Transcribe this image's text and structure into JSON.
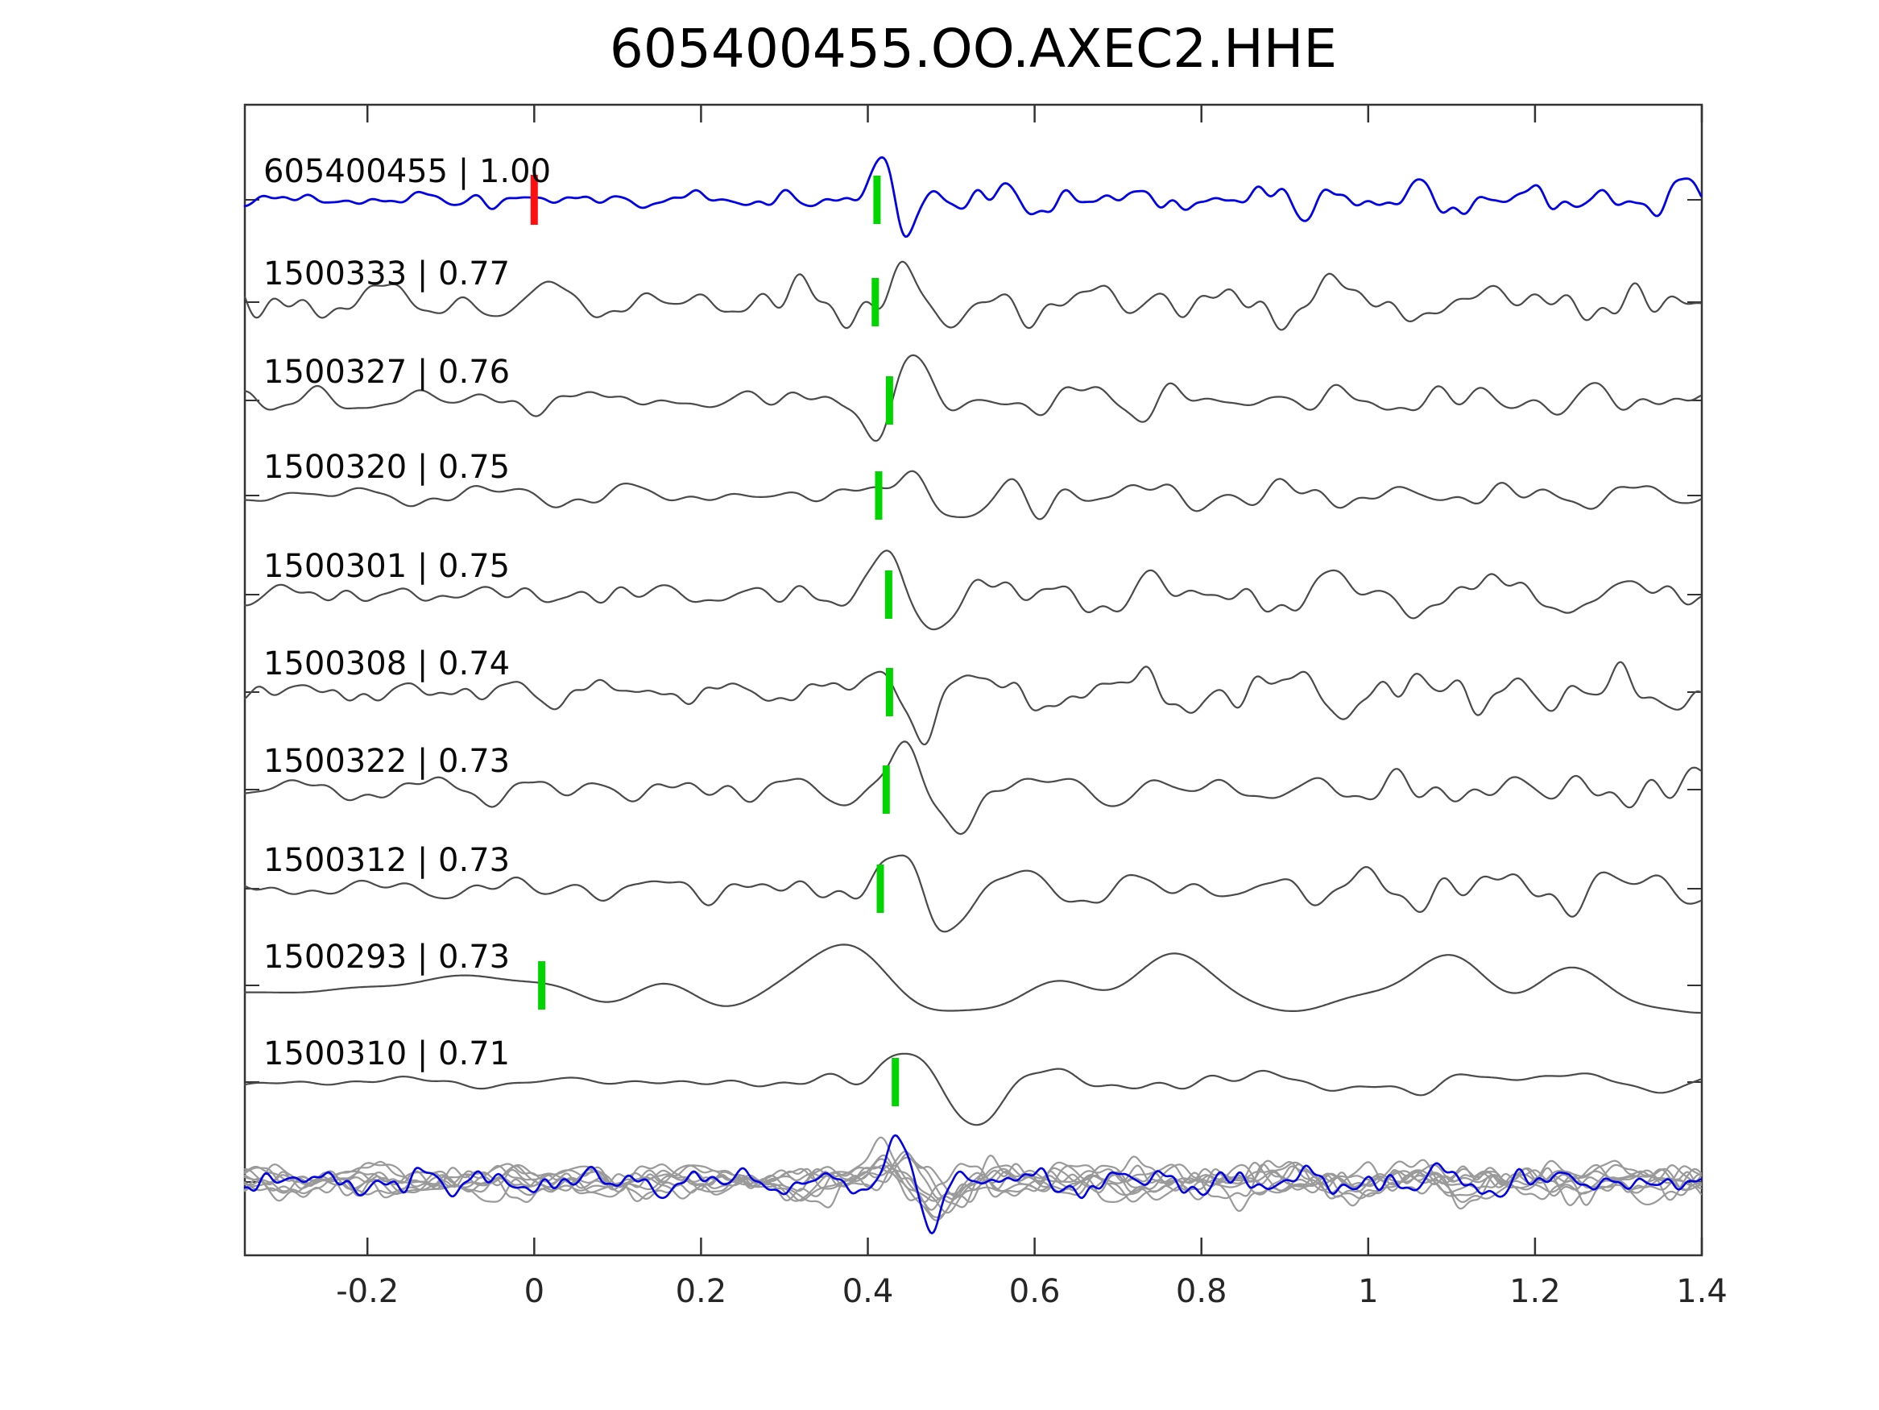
{
  "title": "605400455.OO.AXEC2.HHE",
  "colors": {
    "background": "#ffffff",
    "template_blue": "#0202e8",
    "detection_gray": "#4a4a4a",
    "overlay_gray": "#9a9a9a",
    "pick_green": "#00d500",
    "template_red": "#ff0f0f",
    "axis": "#333333",
    "text": "#0a0a0a",
    "tick_text": "#262626"
  },
  "chart_data": {
    "type": "line",
    "title": "605400455.OO.AXEC2.HHE",
    "xlabel": "",
    "ylabel": "",
    "xlim": [
      -0.347,
      1.4
    ],
    "grid": false,
    "legend": "none",
    "xticks": {
      "values": [
        -0.2,
        0,
        0.2,
        0.4,
        0.6,
        0.8,
        1,
        1.2,
        1.4
      ],
      "labels": [
        "-0.2",
        "0",
        "0.2",
        "0.4",
        "0.6",
        "0.8",
        "1",
        "1.2",
        "1.4"
      ]
    },
    "traces": [
      {
        "id": "605400455",
        "correlation": 1.0,
        "label": "605400455 | 1.00",
        "role": "template",
        "color_key": "template_blue",
        "template_marker_x": 0.0,
        "pick_marker_x": 0.411,
        "style": {
          "seed": 7,
          "amp0": 11,
          "amp1": 21,
          "trans": 0.36,
          "fmin": 7,
          "fmax": 38,
          "width": 2.8,
          "arrivals": [
            {
              "t": 0.425,
              "A": 62,
              "sig": 0.021,
              "f": 13,
              "ps": 2.4
            },
            {
              "t": 0.55,
              "A": 14,
              "sig": 0.08,
              "f": 10,
              "ps": 1.0
            }
          ]
        }
      },
      {
        "id": "1500333",
        "correlation": 0.77,
        "label": "1500333 | 0.77",
        "role": "detection",
        "color_key": "detection_gray",
        "pick_marker_x": 0.409,
        "style": {
          "seed": 23,
          "amp0": 25,
          "amp1": 31,
          "trans": 0.42,
          "fmin": 5,
          "fmax": 30,
          "width": 2.2,
          "arrivals": [
            {
              "t": 0.47,
              "A": 46,
              "sig": 0.05,
              "f": 6.5,
              "ps": 3.34
            }
          ]
        }
      },
      {
        "id": "1500327",
        "correlation": 0.76,
        "label": "1500327 | 0.76",
        "role": "detection",
        "color_key": "detection_gray",
        "pick_marker_x": 0.426,
        "style": {
          "seed": 37,
          "amp0": 17,
          "amp1": 23,
          "trans": 0.4,
          "fmin": 5,
          "fmax": 26,
          "width": 2.2,
          "arrivals": [
            {
              "t": 0.435,
              "A": 50,
              "sig": 0.032,
              "f": 9,
              "ps": 0.3
            }
          ]
        }
      },
      {
        "id": "1500320",
        "correlation": 0.75,
        "label": "1500320 | 0.75",
        "role": "detection",
        "color_key": "detection_gray",
        "pick_marker_x": 0.413,
        "style": {
          "seed": 41,
          "amp0": 13,
          "amp1": 27,
          "trans": 0.42,
          "fmin": 4.5,
          "fmax": 24,
          "width": 2.2,
          "arrivals": [
            {
              "t": 0.485,
              "A": 46,
              "sig": 0.055,
              "f": 5.5,
              "ps": 3.3
            }
          ]
        }
      },
      {
        "id": "1500301",
        "correlation": 0.75,
        "label": "1500301 | 0.75",
        "role": "detection",
        "color_key": "detection_gray",
        "pick_marker_x": 0.425,
        "style": {
          "seed": 59,
          "amp0": 16,
          "amp1": 26,
          "trans": 0.4,
          "fmin": 5,
          "fmax": 28,
          "width": 2.2,
          "arrivals": [
            {
              "t": 0.44,
              "A": 54,
              "sig": 0.038,
              "f": 8,
              "ps": 2.7
            }
          ]
        }
      },
      {
        "id": "1500308",
        "correlation": 0.74,
        "label": "1500308 | 0.74",
        "role": "detection",
        "color_key": "detection_gray",
        "pick_marker_x": 0.426,
        "style": {
          "seed": 61,
          "amp0": 21,
          "amp1": 30,
          "trans": 0.42,
          "fmin": 5,
          "fmax": 28,
          "width": 2.2,
          "arrivals": [
            {
              "t": 0.45,
              "A": 46,
              "sig": 0.045,
              "f": 7.5,
              "ps": 3.8
            }
          ]
        }
      },
      {
        "id": "1500322",
        "correlation": 0.73,
        "label": "1500322 | 0.73",
        "role": "detection",
        "color_key": "detection_gray",
        "pick_marker_x": 0.422,
        "style": {
          "seed": 73,
          "amp0": 15,
          "amp1": 27,
          "trans": 0.42,
          "fmin": 5,
          "fmax": 26,
          "width": 2.2,
          "arrivals": [
            {
              "t": 0.47,
              "A": 46,
              "sig": 0.05,
              "f": 6.5,
              "ps": 3.3
            }
          ]
        }
      },
      {
        "id": "1500312",
        "correlation": 0.73,
        "label": "1500312 | 0.73",
        "role": "detection",
        "color_key": "detection_gray",
        "pick_marker_x": 0.415,
        "style": {
          "seed": 83,
          "amp0": 16,
          "amp1": 25,
          "trans": 0.42,
          "fmin": 5,
          "fmax": 26,
          "width": 2.2,
          "arrivals": [
            {
              "t": 0.47,
              "A": 42,
              "sig": 0.05,
              "f": 6.5,
              "ps": 3.5
            }
          ]
        }
      },
      {
        "id": "1500293",
        "correlation": 0.73,
        "label": "1500293 | 0.73",
        "role": "detection",
        "color_key": "detection_gray",
        "pick_marker_x": 0.009,
        "style": {
          "seed": 97,
          "amp0": 13,
          "amp1": 41,
          "trans": 0.04,
          "fmin": 1.9,
          "fmax": 7.5,
          "width": 2.2,
          "arrivals": [
            {
              "t": 0.45,
              "A": 28,
              "sig": 0.09,
              "f": 3.8,
              "ps": 3.3
            }
          ]
        }
      },
      {
        "id": "1500310",
        "correlation": 0.71,
        "label": "1500310 | 0.71",
        "role": "detection",
        "color_key": "detection_gray",
        "pick_marker_x": 0.433,
        "style": {
          "seed": 103,
          "amp0": 6,
          "amp1": 13,
          "trans": 0.34,
          "fmin": 4,
          "fmax": 20,
          "width": 2.2,
          "arrivals": [
            {
              "t": 0.5,
              "A": 56,
              "sig": 0.065,
              "f": 4.8,
              "ps": 3.5
            },
            {
              "t": 1.15,
              "A": 12,
              "sig": 0.15,
              "f": 3,
              "ps": 0.5
            }
          ]
        }
      }
    ],
    "overlay_row": {
      "description_visible": false,
      "members": [
        {
          "color_key": "overlay_gray",
          "style": {
            "seed": 211,
            "amp0": 16,
            "amp1": 18,
            "trans": 0.4,
            "fmin": 6,
            "fmax": 42,
            "width": 2.2,
            "off": -6,
            "arrivals": [
              {
                "t": 0.46,
                "A": 34,
                "sig": 0.05,
                "f": 8,
                "ps": 3.0
              }
            ]
          }
        },
        {
          "color_key": "overlay_gray",
          "style": {
            "seed": 223,
            "amp0": 18,
            "amp1": 20,
            "trans": 0.4,
            "fmin": 6,
            "fmax": 40,
            "width": 2.2,
            "off": 4,
            "arrivals": [
              {
                "t": 0.45,
                "A": 40,
                "sig": 0.055,
                "f": 7,
                "ps": 3.3
              }
            ]
          }
        },
        {
          "color_key": "overlay_gray",
          "style": {
            "seed": 227,
            "amp0": 14,
            "amp1": 17,
            "trans": 0.4,
            "fmin": 6,
            "fmax": 44,
            "width": 2.2,
            "off": -2,
            "arrivals": [
              {
                "t": 0.47,
                "A": 30,
                "sig": 0.05,
                "f": 8,
                "ps": 2.8
              }
            ]
          }
        },
        {
          "color_key": "overlay_gray",
          "style": {
            "seed": 229,
            "amp0": 17,
            "amp1": 19,
            "trans": 0.4,
            "fmin": 5,
            "fmax": 38,
            "width": 2.2,
            "off": 7,
            "arrivals": [
              {
                "t": 0.46,
                "A": 38,
                "sig": 0.06,
                "f": 6.5,
                "ps": 3.6
              }
            ]
          }
        },
        {
          "color_key": "overlay_gray",
          "style": {
            "seed": 233,
            "amp0": 15,
            "amp1": 18,
            "trans": 0.4,
            "fmin": 6,
            "fmax": 42,
            "width": 2.2,
            "off": -8,
            "arrivals": [
              {
                "t": 0.44,
                "A": 32,
                "sig": 0.045,
                "f": 9,
                "ps": 3.1
              }
            ]
          }
        },
        {
          "color_key": "overlay_gray",
          "style": {
            "seed": 239,
            "amp0": 19,
            "amp1": 21,
            "trans": 0.4,
            "fmin": 5,
            "fmax": 36,
            "width": 2.2,
            "off": 2,
            "arrivals": [
              {
                "t": 0.46,
                "A": 42,
                "sig": 0.06,
                "f": 6,
                "ps": 3.4
              }
            ]
          }
        },
        {
          "color_key": "overlay_gray",
          "style": {
            "seed": 241,
            "amp0": 14,
            "amp1": 16,
            "trans": 0.4,
            "fmin": 7,
            "fmax": 46,
            "width": 2.2,
            "off": -4,
            "arrivals": [
              {
                "t": 0.47,
                "A": 28,
                "sig": 0.05,
                "f": 8.5,
                "ps": 2.9
              }
            ]
          }
        },
        {
          "color_key": "overlay_gray",
          "style": {
            "seed": 251,
            "amp0": 16,
            "amp1": 19,
            "trans": 0.4,
            "fmin": 6,
            "fmax": 40,
            "width": 2.2,
            "off": 9,
            "arrivals": [
              {
                "t": 0.45,
                "A": 36,
                "sig": 0.055,
                "f": 7.5,
                "ps": 3.2
              }
            ]
          }
        },
        {
          "color_key": "overlay_gray",
          "style": {
            "seed": 257,
            "amp0": 17,
            "amp1": 20,
            "trans": 0.4,
            "fmin": 5,
            "fmax": 34,
            "width": 2.2,
            "off": -9,
            "arrivals": [
              {
                "t": 0.46,
                "A": 38,
                "sig": 0.065,
                "f": 6,
                "ps": 3.7
              }
            ]
          }
        },
        {
          "color_key": "template_blue",
          "style": {
            "seed": 307,
            "amp0": 18,
            "amp1": 20,
            "trans": 0.4,
            "fmin": 7,
            "fmax": 48,
            "width": 2.6,
            "off": 0,
            "arrivals": [
              {
                "t": 0.45,
                "A": 46,
                "sig": 0.035,
                "f": 10,
                "ps": 2.9
              }
            ]
          }
        }
      ]
    }
  }
}
